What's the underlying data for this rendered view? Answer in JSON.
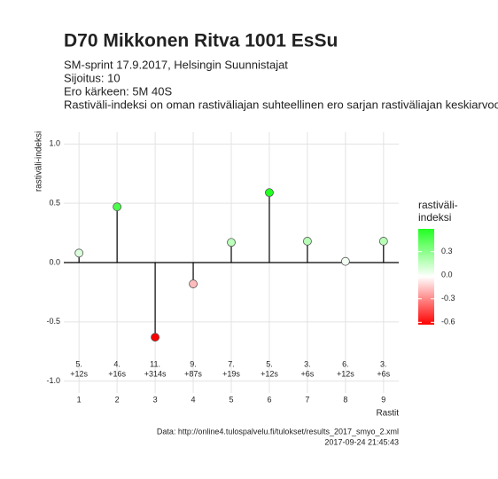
{
  "chart_data": {
    "type": "lollipop",
    "title": "D70 Mikkonen Ritva 1001 EsSu",
    "subtitle": [
      "SM-sprint 17.9.2017, Helsingin Suunnistajat",
      "Sijoitus: 10",
      "Ero kärkeen: 5M 40S",
      "Rastiväli-indeksi on oman rastiväliajan suhteellinen ero sarjan rastiväliajan keskiarvoon"
    ],
    "x_label": "Rastit",
    "y_label": "rastiväli-indeksi",
    "x": [
      1,
      2,
      3,
      4,
      5,
      6,
      7,
      8,
      9
    ],
    "values": [
      0.08,
      0.47,
      -0.63,
      -0.18,
      0.17,
      0.59,
      0.18,
      0.01,
      0.18
    ],
    "positions": [
      "5.",
      "4.",
      "11.",
      "9.",
      "7.",
      "5.",
      "3.",
      "6.",
      "3."
    ],
    "time_diffs": [
      "+12s",
      "+16s",
      "+314s",
      "+87s",
      "+19s",
      "+12s",
      "+6s",
      "+12s",
      "+6s"
    ],
    "xlim": [
      0.6,
      9.4
    ],
    "xticks": [
      1,
      2,
      3,
      4,
      5,
      6,
      7,
      8,
      9
    ],
    "ylim": [
      -1.1,
      1.1
    ],
    "yticks": [
      {
        "value": -1,
        "label": "-1.0"
      },
      -0.5,
      {
        "value": 0,
        "label": "0.0"
      },
      0.5,
      {
        "value": 1,
        "label": "1.0"
      }
    ],
    "hline": 0,
    "grid": true,
    "color_scale": {
      "title": [
        "rastiväli-",
        "indeksi"
      ],
      "colors": [
        "#ff0000",
        "#ffffff",
        "#22ff22"
      ],
      "lim": [
        -0.63,
        0.59
      ],
      "ticks": [
        -0.6,
        -0.3,
        {
          "value": 0,
          "label": "0.0"
        },
        0.3
      ]
    },
    "footer": [
      "Data: http://online4.tulospalvelu.fi/tulokset/results_2017_smyo_2.xml",
      "2017-09-24 21:45:43"
    ]
  }
}
